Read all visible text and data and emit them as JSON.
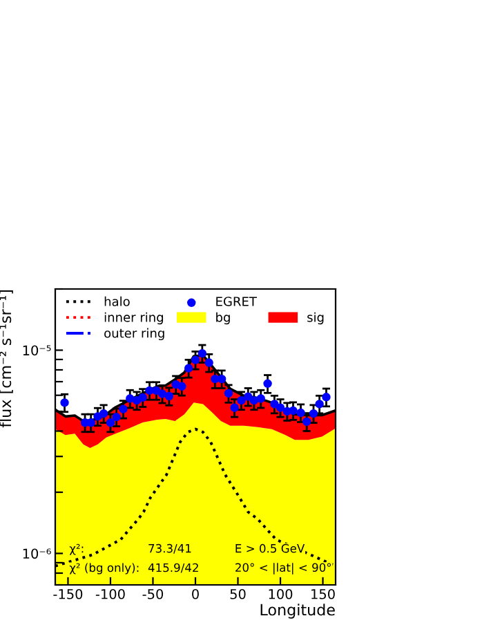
{
  "chart_data": {
    "type": "line",
    "xlabel": "Longitude",
    "ylabel": "flux [cm⁻² s⁻¹sr⁻¹]",
    "xlim": [
      -165,
      165
    ],
    "xticks": [
      -150,
      -100,
      -50,
      0,
      50,
      100,
      150
    ],
    "log": true,
    "ylim": [
      7e-07,
      2e-05
    ],
    "yticks": [
      {
        "value": 7e-07,
        "label": null
      },
      {
        "value": 8e-07,
        "label": null
      },
      {
        "value": 9e-07,
        "label": null
      },
      {
        "value": 1e-06,
        "label": "10⁻⁶"
      },
      {
        "value": 2e-06,
        "label": null
      },
      {
        "value": 3e-06,
        "label": null
      },
      {
        "value": 4e-06,
        "label": null
      },
      {
        "value": 5e-06,
        "label": null
      },
      {
        "value": 6e-06,
        "label": null
      },
      {
        "value": 7e-06,
        "label": null
      },
      {
        "value": 8e-06,
        "label": null
      },
      {
        "value": 9e-06,
        "label": null
      },
      {
        "value": 1e-05,
        "label": "10⁻⁵"
      },
      {
        "value": 2e-05,
        "label": null
      }
    ],
    "grid": false,
    "legend": "top",
    "stacked": true,
    "series": [
      {
        "name": "bg",
        "type": "area",
        "color": "#ffff00",
        "x": [
          -165,
          -153,
          -142,
          -132,
          -124,
          -115,
          -105,
          -94,
          -78,
          -62,
          -45,
          -35,
          -24,
          -13,
          -2,
          9,
          19,
          30,
          41,
          57,
          73,
          90,
          106,
          117,
          133,
          149,
          165
        ],
        "values": [
          4.09e-06,
          3.82e-06,
          3.88e-06,
          3.44e-06,
          3.3e-06,
          3.44e-06,
          3.72e-06,
          3.88e-06,
          4.13e-06,
          4.41e-06,
          4.55e-06,
          4.59e-06,
          4.48e-06,
          4.84e-06,
          5.52e-06,
          5.43e-06,
          4.97e-06,
          4.48e-06,
          4.25e-06,
          4.25e-06,
          4.18e-06,
          4.09e-06,
          3.82e-06,
          3.62e-06,
          3.62e-06,
          3.76e-06,
          4.13e-06
        ]
      },
      {
        "name": "sig",
        "type": "area",
        "color": "#ff0000",
        "x": [
          -165,
          -153,
          -142,
          -132,
          -124,
          -115,
          -105,
          -94,
          -78,
          -62,
          -45,
          -35,
          -24,
          -13,
          -2,
          9,
          19,
          30,
          41,
          57,
          73,
          90,
          106,
          117,
          133,
          149,
          165
        ],
        "values": [
          1.01e-06,
          9e-07,
          8.9e-07,
          1.04e-06,
          1.22e-06,
          1.15e-06,
          1.12e-06,
          1.36e-06,
          1.54e-06,
          1.72e-06,
          2.09e-06,
          2.12e-06,
          2.7e-06,
          2.93e-06,
          3.82e-06,
          4.01e-06,
          3.44e-06,
          2.9e-06,
          2.21e-06,
          1.72e-06,
          1.64e-06,
          1.43e-06,
          1.23e-06,
          1.22e-06,
          1.17e-06,
          1.03e-06,
          9.2e-07
        ]
      },
      {
        "name": "halo",
        "color": "#000000",
        "line_style": "dotted",
        "x": [
          -165,
          -121,
          -88,
          -67,
          -61,
          -53,
          -34,
          -18,
          -9,
          0,
          9,
          18,
          35,
          52,
          62,
          73,
          95,
          138,
          165
        ],
        "values": [
          8.67e-07,
          9.85e-07,
          1.17e-06,
          1.48e-06,
          1.6e-06,
          1.88e-06,
          2.44e-06,
          3.53e-06,
          3.95e-06,
          4.09e-06,
          3.95e-06,
          3.53e-06,
          2.44e-06,
          1.88e-06,
          1.6e-06,
          1.48e-06,
          1.17e-06,
          9.74e-07,
          8.67e-07
        ]
      },
      {
        "name": "inner ring",
        "color": "#ff0000",
        "line_style": "dotted"
      },
      {
        "name": "outer ring",
        "color": "#0000ff",
        "line_style": "dashdot"
      },
      {
        "name": "EGRET",
        "type": "scatter",
        "color": "#0000ff",
        "marker": "circle",
        "x": [
          -154,
          -130,
          -123,
          -115,
          -108,
          -100,
          -93,
          -85,
          -77,
          -69,
          -62,
          -54,
          -46,
          -39,
          -31,
          -23,
          -16,
          -8,
          0,
          8,
          16,
          23,
          31,
          39,
          46,
          54,
          62,
          69,
          77,
          85,
          93,
          100,
          108,
          115,
          124,
          131,
          139,
          146,
          154
        ],
        "values": [
          5.52e-06,
          4.4e-06,
          4.4e-06,
          4.72e-06,
          4.88e-06,
          4.4e-06,
          4.69e-06,
          5.13e-06,
          5.78e-06,
          5.66e-06,
          5.85e-06,
          6.33e-06,
          6.33e-06,
          6.1e-06,
          5.94e-06,
          6.78e-06,
          6.64e-06,
          8.15e-06,
          8.95e-06,
          9.64e-06,
          8.68e-06,
          7.22e-06,
          7.22e-06,
          6.13e-06,
          5.21e-06,
          5.66e-06,
          5.91e-06,
          5.66e-06,
          5.78e-06,
          6.85e-06,
          5.43e-06,
          5.21e-06,
          5e-06,
          5.04e-06,
          4.92e-06,
          4.45e-06,
          4.88e-06,
          5.43e-06,
          5.88e-06
        ],
        "errors": [
          5.5e-07,
          4.4e-07,
          4.4e-07,
          4.7e-07,
          4.9e-07,
          4.4e-07,
          4.7e-07,
          5.1e-07,
          5.8e-07,
          5.7e-07,
          5.9e-07,
          6.3e-07,
          6.3e-07,
          6.1e-07,
          5.9e-07,
          6.8e-07,
          6.6e-07,
          8.2e-07,
          9e-07,
          9.6e-07,
          8.7e-07,
          7.2e-07,
          7.2e-07,
          6.1e-07,
          5.2e-07,
          5.7e-07,
          5.9e-07,
          5.7e-07,
          5.8e-07,
          6.9e-07,
          5.4e-07,
          5.2e-07,
          5e-07,
          5e-07,
          4.9e-07,
          4.5e-07,
          4.9e-07,
          5.4e-07,
          5.9e-07
        ]
      }
    ],
    "annotations": [
      "χ²:",
      "73.3/41",
      "E > 0.5 GeV",
      "χ² (bg only):",
      "415.9/42",
      "20° < |lat| < 90°"
    ]
  }
}
